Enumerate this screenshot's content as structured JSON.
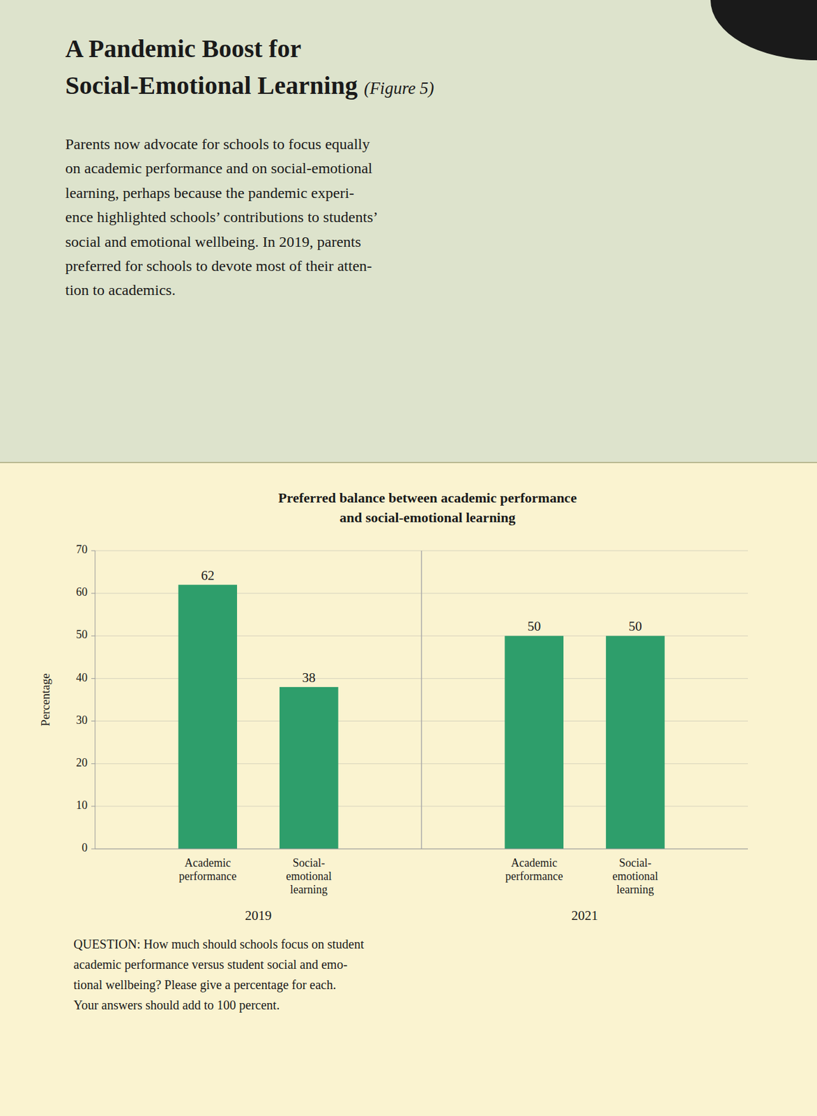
{
  "header": {
    "title": "A Pandemic Boost for\nSocial-Emotional Learning",
    "figure_label": "(Figure 5)",
    "text": "Parents now advocate for schools to focus equally\non academic performance and on social-emotional\nlearning, perhaps because the pandemic experi-\nence highlighted schools’ contributions to students’\nsocial and emotional wellbeing. In 2019, parents\npreferred for schools to devote most of their atten-\ntion to academics."
  },
  "chart_data": {
    "type": "bar",
    "title": "Preferred balance between academic performance\nand social-emotional learning",
    "categories": [
      "Academic\nperformance",
      "Social-\nemotional\nlearning"
    ],
    "series": [
      {
        "name": "2019",
        "values": [
          62,
          38
        ]
      },
      {
        "name": "2021",
        "values": [
          50,
          50
        ]
      }
    ],
    "color": "#2e9e6b",
    "ylabel": "Percentage",
    "ylim": [
      0,
      70
    ],
    "yticks": [
      0,
      10,
      20,
      30,
      40,
      50,
      60,
      70
    ],
    "grid": true,
    "data_labels": true,
    "annotation": "QUESTION: How much should schools focus on student\nacademic performance versus student social and emo-\ntional wellbeing? Please give a percentage for each.\nYour answers should add to 100 percent."
  }
}
